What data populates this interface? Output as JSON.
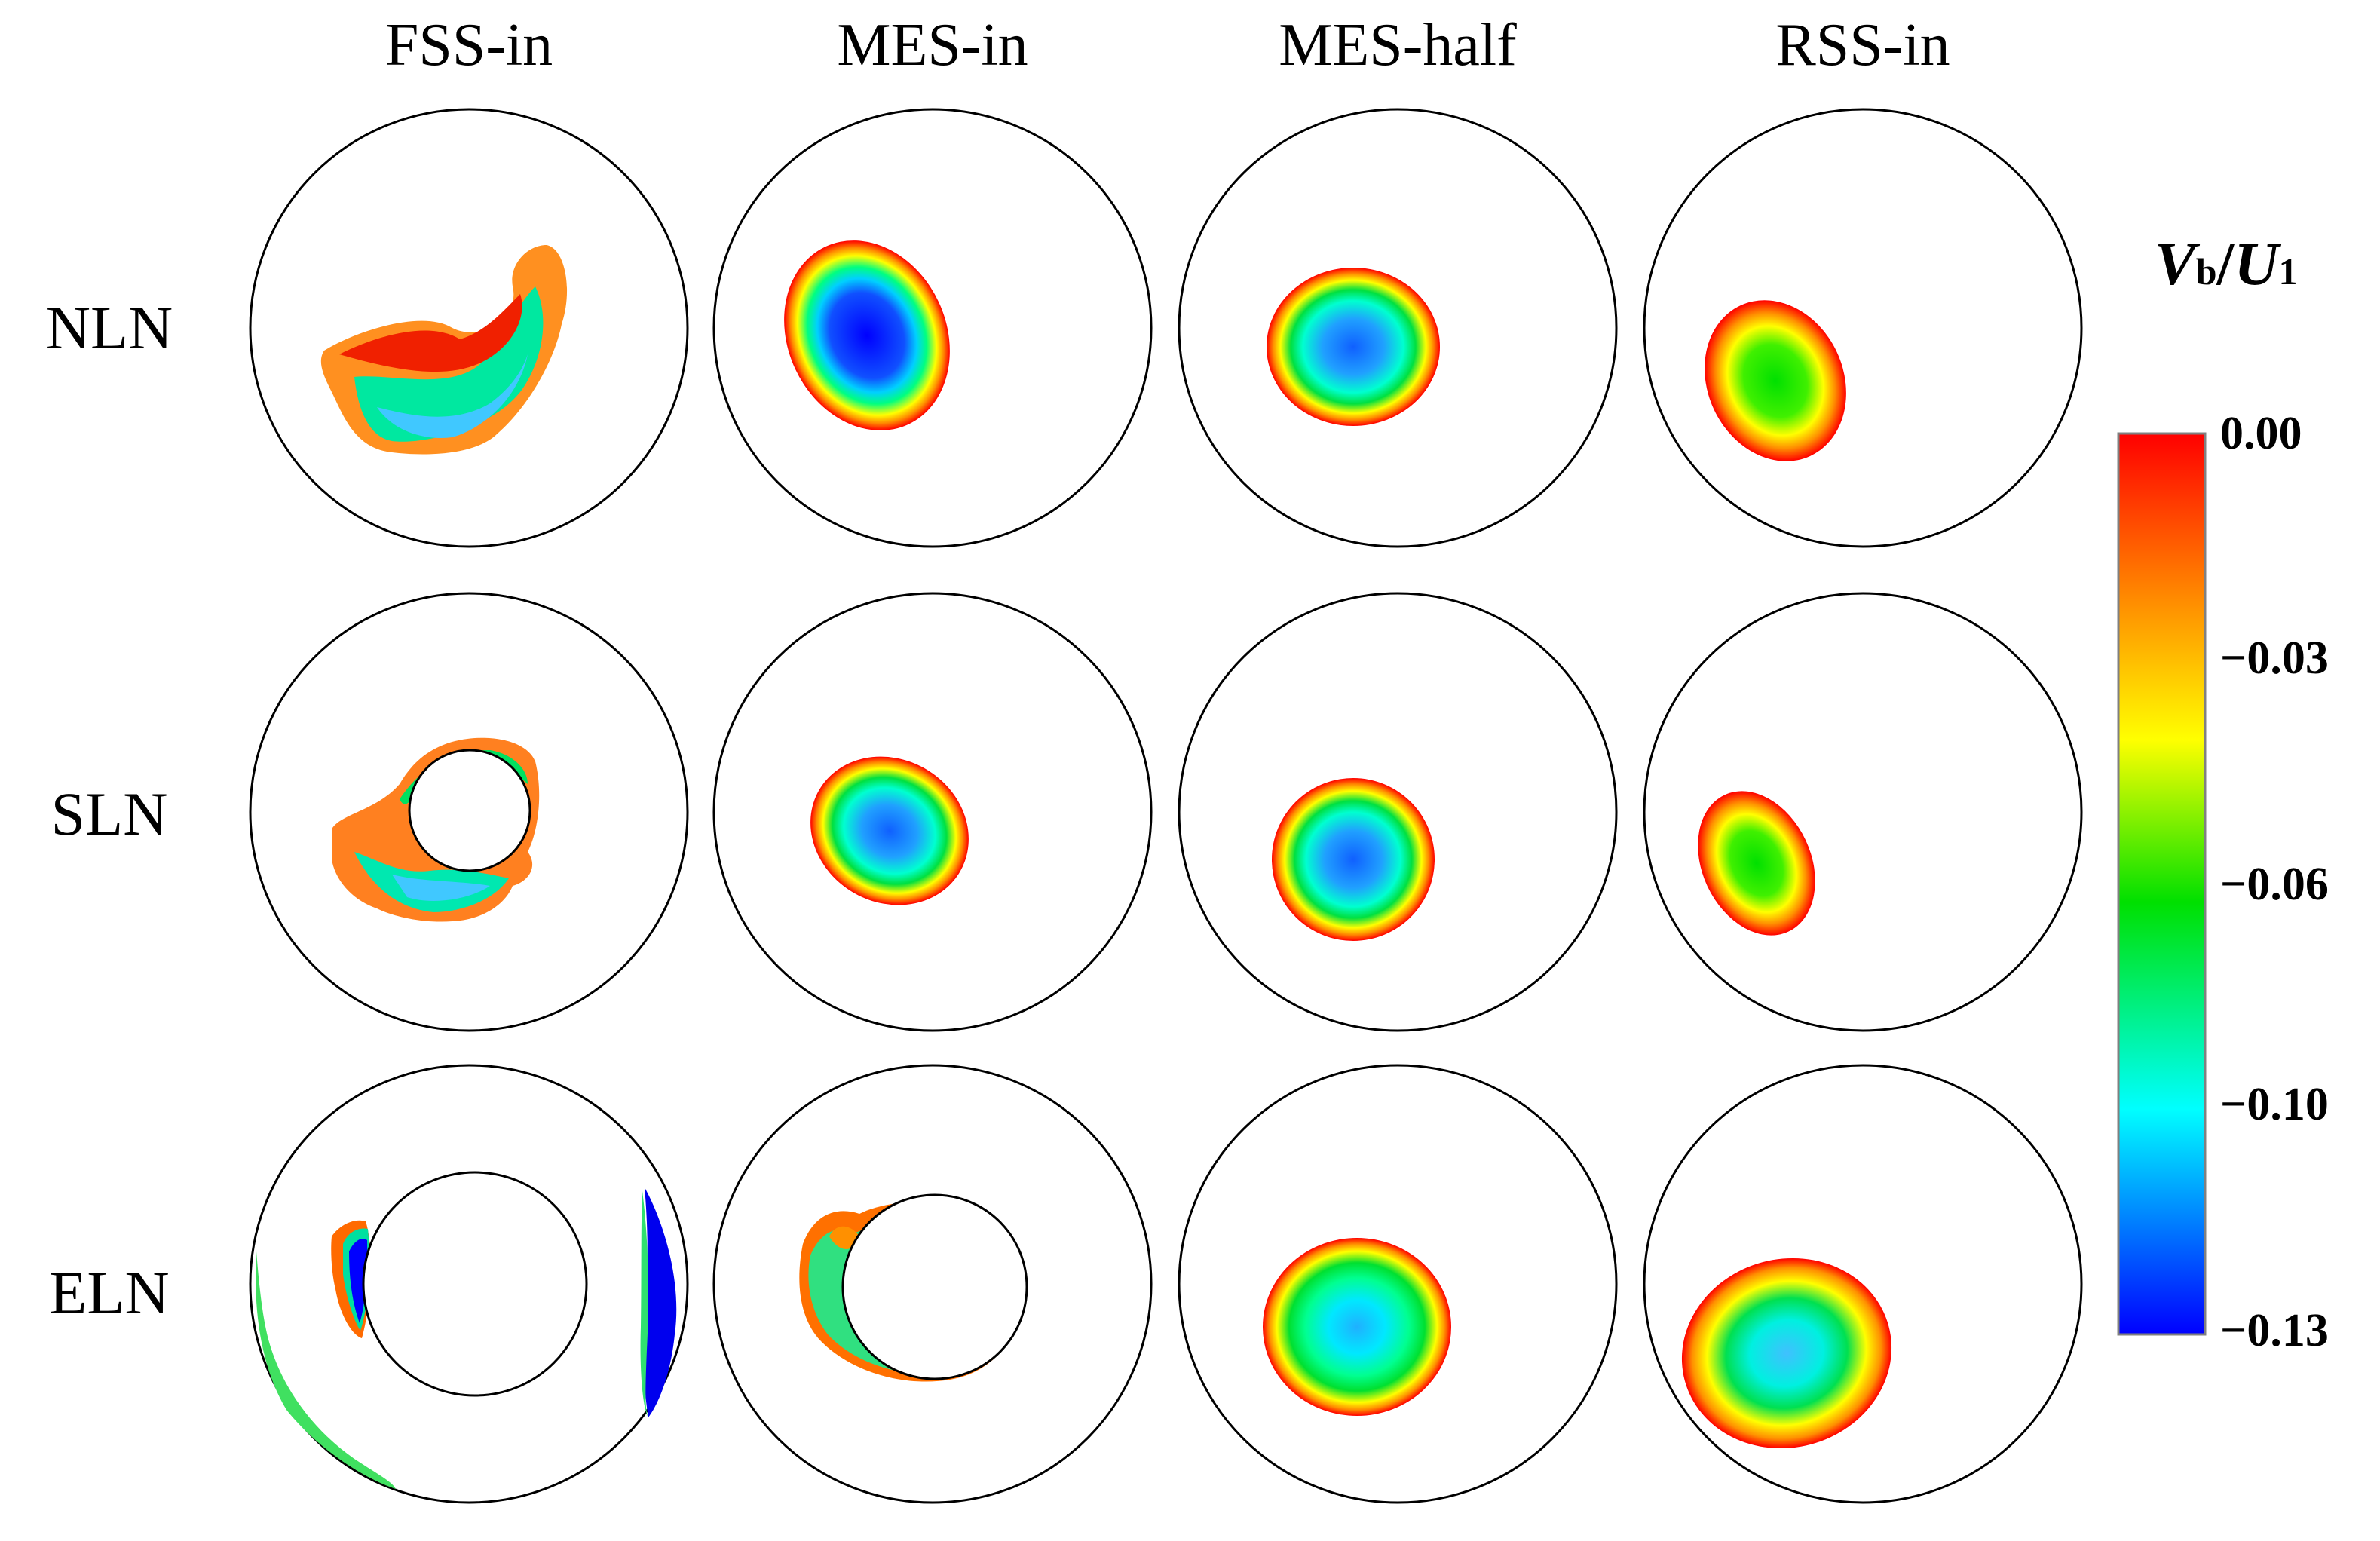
{
  "figure": {
    "columns": [
      "FSS-in",
      "MES-in",
      "MES-half",
      "RSS-in"
    ],
    "rows": [
      "NLN",
      "SLN",
      "ELN"
    ],
    "colorbar": {
      "title_main": "V",
      "title_sub1": "b",
      "title_sep": "/",
      "title_main2": "U",
      "title_sub2": "1",
      "ticks": [
        "0.00",
        "−0.03",
        "−0.06",
        "−0.10",
        "−0.13"
      ],
      "colors": [
        "#ff0000",
        "#ff8800",
        "#ffff00",
        "#00e000",
        "#00ffff",
        "#0000ff"
      ]
    }
  }
}
